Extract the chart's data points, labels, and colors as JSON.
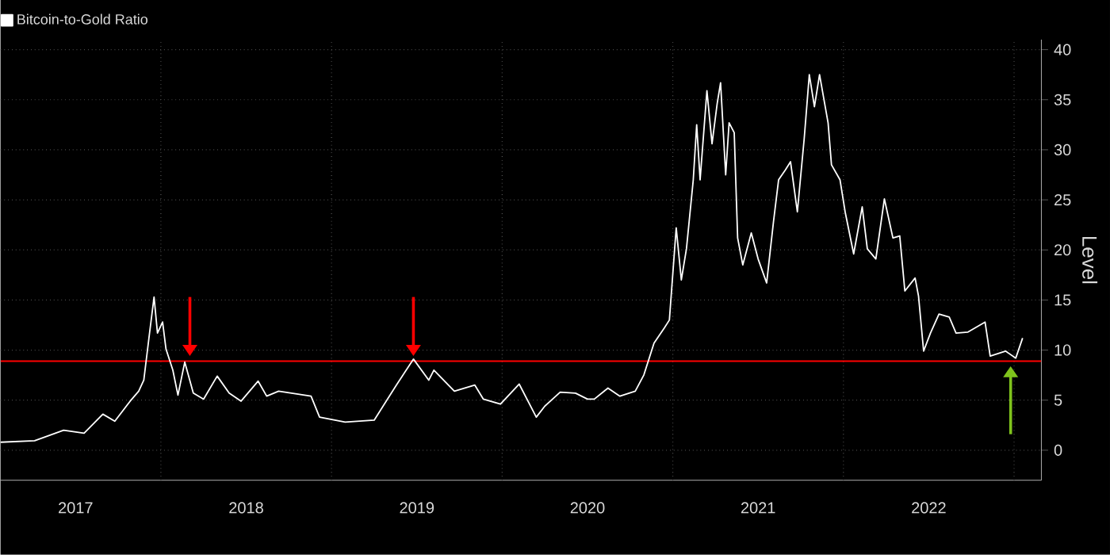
{
  "chart_data": {
    "type": "line",
    "ylabel": "Level",
    "xlim": [
      2017.06,
      2023.16
    ],
    "ylim": [
      -3,
      41
    ],
    "yticks": [
      0,
      5,
      10,
      15,
      20,
      25,
      30,
      35,
      40
    ],
    "xticks": [
      {
        "value": 2017.5,
        "label": "2017"
      },
      {
        "value": 2018,
        "label": null
      },
      {
        "value": 2018.5,
        "label": "2018"
      },
      {
        "value": 2019,
        "label": null
      },
      {
        "value": 2019.5,
        "label": "2019"
      },
      {
        "value": 2020,
        "label": null
      },
      {
        "value": 2020.5,
        "label": "2020"
      },
      {
        "value": 2021,
        "label": null
      },
      {
        "value": 2021.5,
        "label": "2021"
      },
      {
        "value": 2022,
        "label": null
      },
      {
        "value": 2022.5,
        "label": "2022"
      },
      {
        "value": 2023,
        "label": null
      }
    ],
    "grid": true,
    "legend": "top left",
    "ref_lines": [
      {
        "axis": "y",
        "value": 8.9,
        "color": "#ff0000"
      }
    ],
    "series": [
      {
        "name": "Bitcoin-to-Gold Ratio",
        "color": "#ffffff",
        "x": [
          2017.06,
          2017.26,
          2017.43,
          2017.55,
          2017.66,
          2017.73,
          2017.82,
          2017.87,
          2017.9,
          2017.93,
          2017.96,
          2017.98,
          2018.01,
          2018.03,
          2018.07,
          2018.1,
          2018.14,
          2018.19,
          2018.25,
          2018.33,
          2018.4,
          2018.47,
          2018.57,
          2018.62,
          2018.69,
          2018.88,
          2018.93,
          2019.08,
          2019.25,
          2019.38,
          2019.48,
          2019.57,
          2019.6,
          2019.72,
          2019.84,
          2019.89,
          2019.99,
          2020.1,
          2020.2,
          2020.25,
          2020.34,
          2020.43,
          2020.5,
          2020.54,
          2020.62,
          2020.69,
          2020.78,
          2020.83,
          2020.89,
          2020.95,
          2020.98,
          2021.02,
          2021.05,
          2021.08,
          2021.12,
          2021.14,
          2021.16,
          2021.2,
          2021.23,
          2021.26,
          2021.28,
          2021.31,
          2021.33,
          2021.36,
          2021.38,
          2021.41,
          2021.46,
          2021.5,
          2021.55,
          2021.59,
          2021.62,
          2021.66,
          2021.69,
          2021.73,
          2021.77,
          2021.8,
          2021.83,
          2021.86,
          2021.91,
          2021.93,
          2021.98,
          2022.01,
          2022.06,
          2022.11,
          2022.14,
          2022.19,
          2022.24,
          2022.29,
          2022.33,
          2022.36,
          2022.42,
          2022.44,
          2022.47,
          2022.51,
          2022.56,
          2022.62,
          2022.66,
          2022.73,
          2022.83,
          2022.86,
          2022.95,
          2023.01,
          2023.05
        ],
        "values": [
          0.8,
          0.95,
          2.0,
          1.7,
          3.6,
          2.9,
          4.9,
          5.9,
          7.0,
          11.2,
          15.3,
          11.7,
          12.8,
          10.1,
          8.0,
          5.5,
          8.8,
          5.7,
          5.1,
          7.4,
          5.7,
          4.9,
          6.9,
          5.4,
          5.9,
          5.4,
          3.3,
          2.8,
          3.0,
          6.5,
          9.1,
          7.0,
          8.0,
          5.9,
          6.5,
          5.1,
          4.6,
          6.6,
          3.3,
          4.4,
          5.8,
          5.7,
          5.1,
          5.1,
          6.2,
          5.4,
          5.9,
          7.5,
          10.7,
          12.2,
          13.0,
          22.2,
          17.0,
          20.1,
          27.0,
          32.5,
          27.0,
          35.9,
          30.6,
          34.6,
          36.7,
          27.5,
          32.7,
          31.7,
          21.2,
          18.5,
          21.7,
          19.1,
          16.7,
          22.8,
          27.0,
          28.0,
          28.8,
          23.8,
          31.1,
          37.5,
          34.3,
          37.5,
          32.7,
          28.5,
          27.0,
          23.8,
          19.6,
          24.3,
          20.1,
          19.1,
          25.1,
          21.2,
          21.4,
          15.9,
          17.2,
          15.4,
          9.9,
          11.7,
          13.6,
          13.3,
          11.7,
          11.8,
          12.8,
          9.4,
          9.9,
          9.2,
          11.2
        ]
      }
    ]
  }
}
